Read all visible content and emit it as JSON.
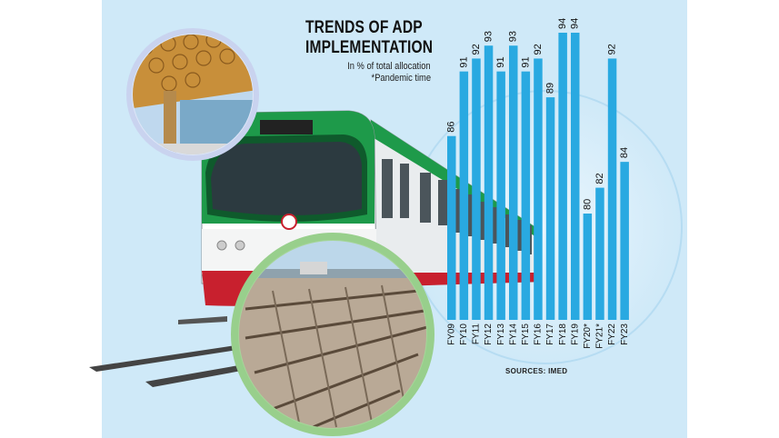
{
  "header": {
    "title_line1": "TRENDS OF ADP",
    "title_line2": "IMPLEMENTATION",
    "subtitle": "In % of total allocation",
    "note": "*Pandemic time"
  },
  "footer": {
    "sources": "SOURCES: IMED"
  },
  "colors": {
    "bar": "#29a9e1",
    "panel": "#cfe9f8",
    "train_green": "#1e9a4a",
    "train_red": "#c8202e"
  },
  "chart_data": {
    "type": "bar",
    "title": "TRENDS OF ADP IMPLEMENTATION",
    "subtitle": "In % of total allocation",
    "annotations": [
      "*Pandemic time"
    ],
    "source": "SOURCES: IMED",
    "categories": [
      "FY09",
      "FY10",
      "FY11",
      "FY12",
      "FY13",
      "FY14",
      "FY15",
      "FY16",
      "FY17",
      "FY18",
      "FY19",
      "FY20*",
      "FY21*",
      "FY22",
      "FY23"
    ],
    "values": [
      86,
      91,
      92,
      93,
      91,
      93,
      91,
      92,
      89,
      94,
      94,
      80,
      82,
      92,
      84
    ],
    "data_labels": [
      "86",
      "91",
      "92",
      "93",
      "91",
      "93",
      "91",
      "92",
      "89",
      "94",
      "94",
      "80",
      "82",
      "92",
      "84"
    ],
    "bar_color": "#29a9e1",
    "axes_visible": false,
    "grid": false,
    "legend": "none"
  }
}
